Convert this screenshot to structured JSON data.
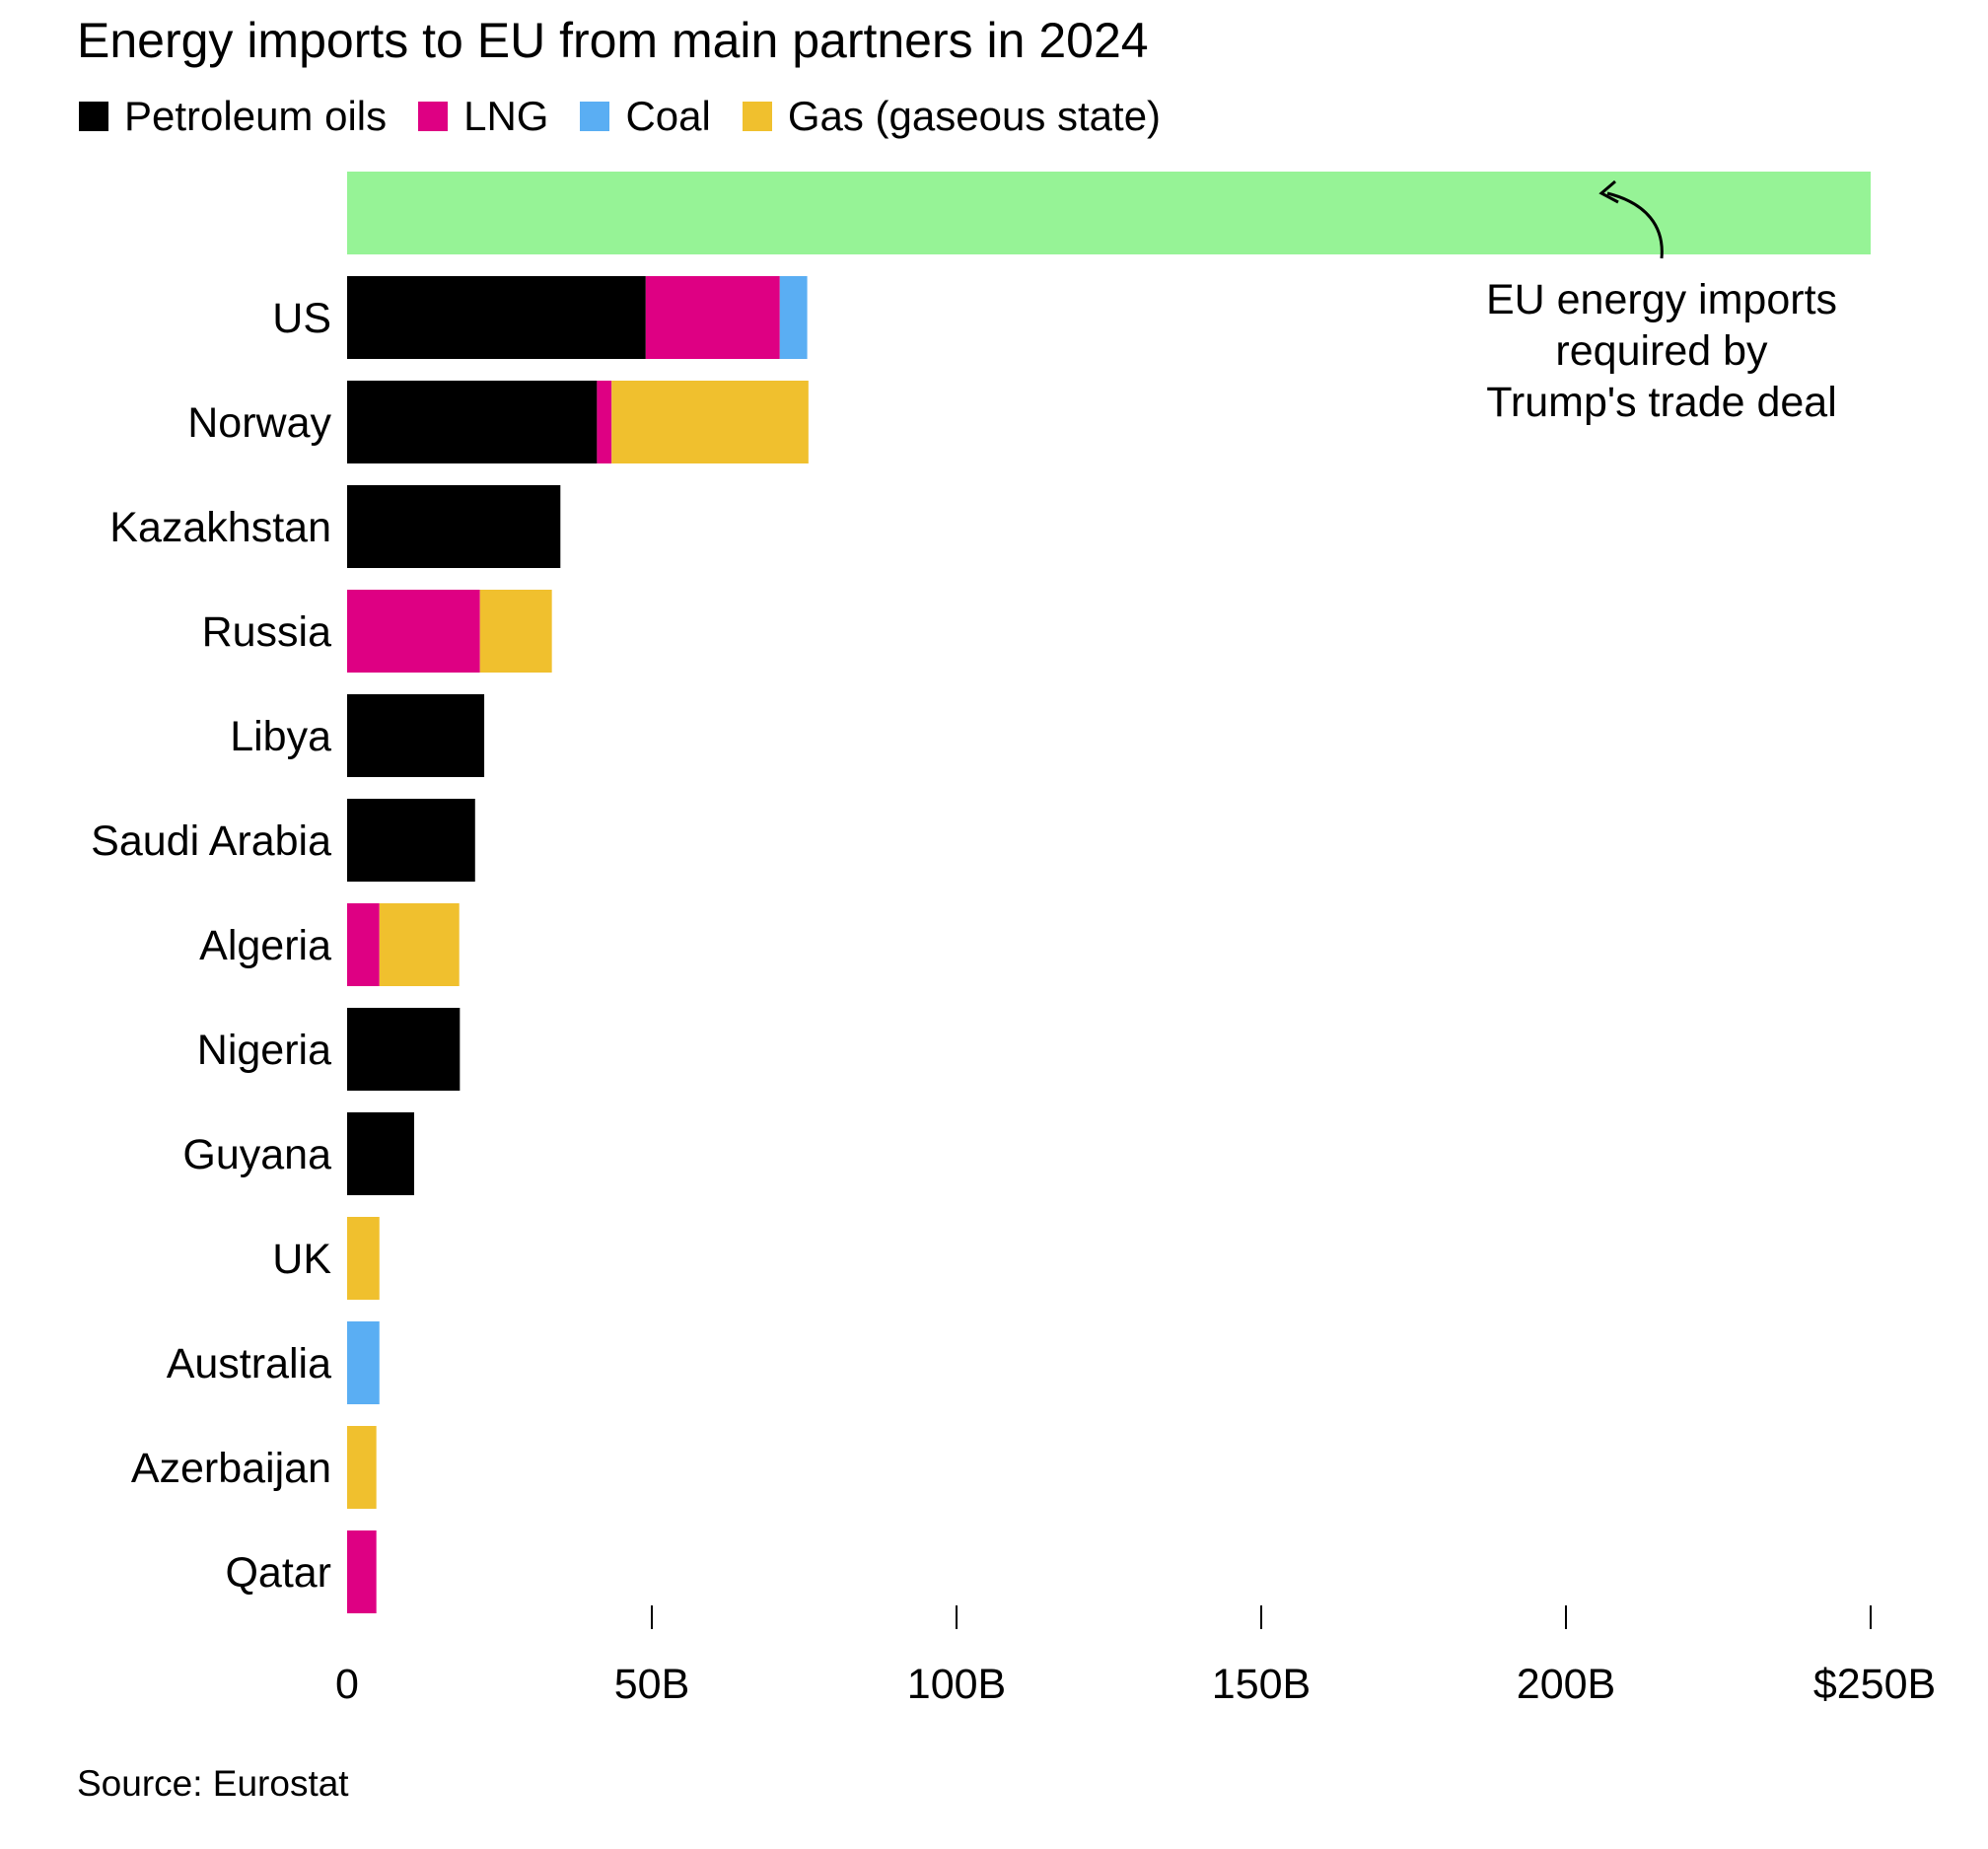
{
  "title": "Energy imports to EU from main partners in 2024",
  "source": "Source: Eurostat",
  "legend": [
    {
      "label": "Petroleum oils",
      "color": "#000000"
    },
    {
      "label": "LNG",
      "color": "#de0083"
    },
    {
      "label": "Coal",
      "color": "#5aaef3"
    },
    {
      "label": "Gas (gaseous state)",
      "color": "#f0c02e"
    }
  ],
  "chart_data": {
    "type": "bar",
    "orientation": "horizontal",
    "stacked": true,
    "title": "Energy imports to EU from main partners in 2024",
    "categories": [
      "US",
      "Norway",
      "Kazakhstan",
      "Russia",
      "Libya",
      "Saudi Arabia",
      "Algeria",
      "Nigeria",
      "Guyana",
      "UK",
      "Australia",
      "Azerbaijan",
      "Qatar"
    ],
    "series": [
      {
        "name": "Petroleum oils",
        "color": "#000000",
        "values": [
          49,
          41,
          35,
          0,
          22.5,
          21,
          0,
          18.5,
          11,
          0,
          0,
          0,
          0
        ]
      },
      {
        "name": "LNG",
        "color": "#de0083",
        "values": [
          22,
          2.4,
          0,
          21.8,
          0,
          0,
          5.3,
          0,
          0,
          0,
          0,
          0,
          4.8
        ]
      },
      {
        "name": "Coal",
        "color": "#5aaef3",
        "values": [
          4.5,
          0,
          0,
          0,
          0,
          0,
          0,
          0,
          0,
          0,
          5.3,
          0,
          0
        ]
      },
      {
        "name": "Gas (gaseous state)",
        "color": "#f0c02e",
        "values": [
          0,
          32.3,
          0,
          11.8,
          0,
          0,
          13.1,
          0,
          0,
          5.3,
          0,
          4.8,
          0
        ]
      }
    ],
    "reference_bar": {
      "value": 250,
      "color": "#96f396",
      "annotation": [
        "EU energy imports",
        "required by",
        "Trump's trade deal"
      ]
    },
    "xlim": [
      0,
      250
    ],
    "x_ticks": [
      0,
      50,
      100,
      150,
      200,
      250
    ],
    "x_tick_labels": [
      "0",
      "50B",
      "100B",
      "150B",
      "200B",
      "$250B"
    ],
    "xlabel": "",
    "ylabel": "",
    "grid": false,
    "legend_position": "top-left"
  }
}
